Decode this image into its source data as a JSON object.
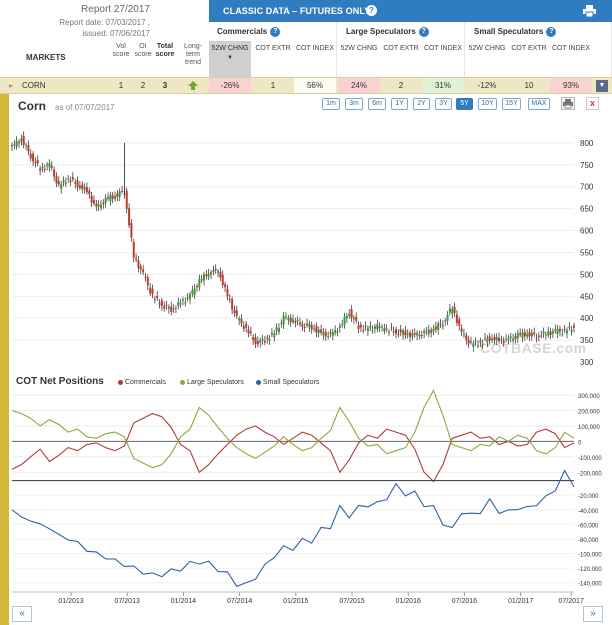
{
  "report": {
    "title": "Report 27/2017",
    "date": "Report date: 07/03/2017 ,",
    "issued": "issued: 07/06/2017"
  },
  "header": {
    "markets": "MARKETS",
    "vol_score": "Vol score",
    "oi_score": "OI score",
    "total_score": "Total score",
    "long_term": "Long-term trend",
    "banner": "CLASSIC DATA – FUTURES ONLY",
    "help": "?",
    "groups": [
      {
        "title": "Commercials",
        "cols": [
          "52W CHNG",
          "COT EXTR",
          "COT INDEX"
        ]
      },
      {
        "title": "Large Speculators",
        "cols": [
          "52W CHNG",
          "COT EXTR",
          "COT INDEX"
        ]
      },
      {
        "title": "Small Speculators",
        "cols": [
          "52W CHNG",
          "COT EXTR",
          "COT INDEX"
        ]
      }
    ]
  },
  "market_row": {
    "name": "CORN",
    "vol": "1",
    "oi": "2",
    "total": "3",
    "comm_chng": "-26%",
    "comm_extr": "1",
    "comm_index": "56%",
    "large_chng": "24%",
    "large_extr": "2",
    "large_index": "31%",
    "small_chng": "-12%",
    "small_extr": "10",
    "small_index": "93%"
  },
  "chart_header": {
    "title": "Corn",
    "asof": "as of 07/07/2017",
    "ranges": [
      "1m",
      "3m",
      "6m",
      "1Y",
      "2Y",
      "3Y",
      "5Y",
      "10Y",
      "15Y",
      "MAX"
    ],
    "active_range": "5Y",
    "close": "x"
  },
  "cot_header": {
    "title": "COT Net Positions",
    "legend": [
      {
        "name": "Commercials",
        "color": "#b23a3a"
      },
      {
        "name": "Large Speculators",
        "color": "#8aab3a"
      },
      {
        "name": "Small Speculators",
        "color": "#2d62a8"
      }
    ]
  },
  "watermark": "COTBASE.com",
  "nav": {
    "prev": "«",
    "next": "»"
  },
  "chart_data": [
    {
      "type": "candlestick",
      "title": "Corn",
      "ylim": [
        300,
        850
      ],
      "yticks": [
        300,
        350,
        400,
        450,
        500,
        550,
        600,
        650,
        700,
        750,
        800
      ],
      "x": [
        "2012-07",
        "2012-08",
        "2012-09",
        "2012-10",
        "2012-11",
        "2012-12",
        "2013-01",
        "2013-02",
        "2013-03",
        "2013-04",
        "2013-05",
        "2013-06",
        "2013-07",
        "2013-08",
        "2013-09",
        "2013-10",
        "2013-11",
        "2013-12",
        "2014-01",
        "2014-02",
        "2014-03",
        "2014-04",
        "2014-05",
        "2014-06",
        "2014-07",
        "2014-08",
        "2014-09",
        "2014-10",
        "2014-11",
        "2014-12",
        "2015-01",
        "2015-02",
        "2015-03",
        "2015-04",
        "2015-05",
        "2015-06",
        "2015-07",
        "2015-08",
        "2015-09",
        "2015-10",
        "2015-11",
        "2015-12",
        "2016-01",
        "2016-02",
        "2016-03",
        "2016-04",
        "2016-05",
        "2016-06",
        "2016-07",
        "2016-08",
        "2016-09",
        "2016-10",
        "2016-11",
        "2016-12",
        "2017-01",
        "2017-02",
        "2017-03",
        "2017-04",
        "2017-05",
        "2017-06",
        "2017-07"
      ],
      "close": [
        790,
        810,
        770,
        740,
        750,
        700,
        720,
        705,
        690,
        650,
        670,
        680,
        690,
        540,
        500,
        450,
        430,
        420,
        435,
        450,
        485,
        505,
        510,
        450,
        400,
        375,
        345,
        350,
        365,
        400,
        395,
        385,
        380,
        365,
        360,
        380,
        415,
        380,
        375,
        380,
        375,
        370,
        365,
        360,
        365,
        375,
        390,
        425,
        365,
        340,
        345,
        355,
        350,
        350,
        360,
        365,
        360,
        365,
        370,
        370,
        380
      ],
      "xticks": [
        "01/2013",
        "07/2013",
        "01/2014",
        "07/2014",
        "01/2015",
        "07/2015",
        "01/2016",
        "07/2016",
        "01/2017",
        "07/2017"
      ]
    },
    {
      "type": "line",
      "title": "COT Net Positions",
      "ylim": [
        -250000,
        320000
      ],
      "yticks": [
        300000,
        200000,
        100000,
        0,
        -100000,
        -200000
      ],
      "ytick_labels": [
        "300,000",
        "200,000",
        "100,000",
        "0",
        "-100,000",
        "-200,000"
      ],
      "series": [
        {
          "name": "Commercials",
          "values": [
            -180000,
            -150000,
            -100000,
            -50000,
            -130000,
            -90000,
            -40000,
            -60000,
            -20000,
            -10000,
            -40000,
            -60000,
            -30000,
            120000,
            150000,
            180000,
            160000,
            90000,
            -20000,
            -60000,
            -200000,
            -150000,
            -80000,
            -20000,
            40000,
            80000,
            100000,
            60000,
            30000,
            -20000,
            20000,
            60000,
            40000,
            -10000,
            -60000,
            -200000,
            -120000,
            -10000,
            40000,
            20000,
            80000,
            60000,
            40000,
            -50000,
            -200000,
            -260000,
            -150000,
            20000,
            40000,
            60000,
            20000,
            30000,
            -20000,
            0,
            -30000,
            -20000,
            60000,
            80000,
            50000,
            -40000,
            -10000
          ]
        },
        {
          "name": "Large Speculators",
          "values": [
            200000,
            180000,
            150000,
            100000,
            140000,
            110000,
            60000,
            80000,
            30000,
            20000,
            50000,
            60000,
            30000,
            -110000,
            -140000,
            -170000,
            -150000,
            -80000,
            30000,
            80000,
            220000,
            170000,
            90000,
            20000,
            -40000,
            -80000,
            -110000,
            -70000,
            -30000,
            30000,
            -20000,
            -60000,
            -40000,
            20000,
            70000,
            220000,
            130000,
            20000,
            -30000,
            -20000,
            -80000,
            -60000,
            -40000,
            60000,
            220000,
            330000,
            170000,
            -20000,
            -40000,
            -60000,
            -20000,
            -30000,
            30000,
            0,
            40000,
            20000,
            -60000,
            -80000,
            -40000,
            60000,
            20000
          ]
        },
        {
          "name": "Small Speculators",
          "values": [
            -40000,
            -50000,
            -55000,
            -60000,
            -65000,
            -75000,
            -80000,
            -85000,
            -95000,
            -100000,
            -105000,
            -110000,
            -115000,
            -120000,
            -125000,
            -130000,
            -128000,
            -125000,
            -120000,
            -115000,
            -110000,
            -115000,
            -120000,
            -130000,
            -140000,
            -145000,
            -130000,
            -120000,
            -100000,
            -95000,
            -90000,
            -85000,
            -80000,
            -70000,
            -60000,
            -40000,
            -45000,
            -40000,
            -30000,
            -35000,
            -20000,
            -10000,
            -15000,
            -20000,
            -30000,
            -40000,
            -55000,
            -70000,
            -40000,
            -50000,
            -40000,
            -30000,
            -40000,
            -45000,
            -35000,
            -40000,
            -30000,
            -25000,
            -10000,
            10000,
            -5000
          ]
        }
      ]
    },
    {
      "type": "line",
      "title": "",
      "ylim": [
        -150000,
        5000
      ],
      "yticks": [
        -20000,
        -40000,
        -60000,
        -80000,
        -100000,
        -120000,
        -140000
      ],
      "ytick_labels": [
        "-20,000",
        "-40,000",
        "-60,000",
        "-80,000",
        "-100,000",
        "-120,000",
        "-140,000"
      ]
    }
  ]
}
